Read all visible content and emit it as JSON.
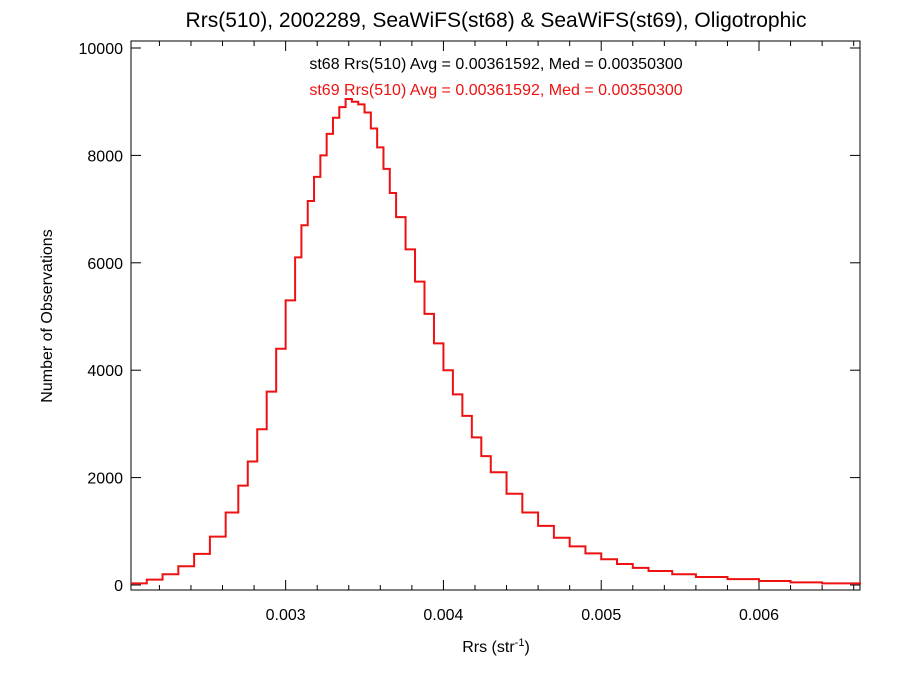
{
  "chart_data": {
    "type": "line",
    "title": "Rrs(510), 2002289, SeaWiFS(st68) & SeaWiFS(st69), Oligotrophic",
    "xlabel": "Rrs (str",
    "xlabel_sup": "-1",
    "xlabel_close": ")",
    "ylabel": "Number of Observations",
    "xlim": [
      0.00202,
      0.00664
    ],
    "ylim": [
      0,
      10000
    ],
    "xticks": [
      {
        "value": 0.003,
        "label": "0.003"
      },
      {
        "value": 0.004,
        "label": "0.004"
      },
      {
        "value": 0.005,
        "label": "0.005"
      },
      {
        "value": 0.006,
        "label": "0.006"
      }
    ],
    "yticks": [
      {
        "value": 0,
        "label": "0"
      },
      {
        "value": 2000,
        "label": "2000"
      },
      {
        "value": 4000,
        "label": "4000"
      },
      {
        "value": 6000,
        "label": "6000"
      },
      {
        "value": 8000,
        "label": "8000"
      },
      {
        "value": 10000,
        "label": "10000"
      }
    ],
    "annotations": [
      {
        "text": "st68 Rrs(510) Avg = 0.00361592, Med = 0.00350300",
        "color": "#000000"
      },
      {
        "text": "st69 Rrs(510) Avg = 0.00361592, Med = 0.00350300",
        "color": "#ee1111"
      }
    ],
    "series": [
      {
        "color": "#ee1111",
        "step": true,
        "x": [
          0.00202,
          0.00212,
          0.00222,
          0.00232,
          0.00242,
          0.00252,
          0.00262,
          0.0027,
          0.00276,
          0.00282,
          0.00288,
          0.00294,
          0.003,
          0.00306,
          0.0031,
          0.00314,
          0.00318,
          0.00322,
          0.00326,
          0.0033,
          0.00334,
          0.00338,
          0.00342,
          0.00346,
          0.0035,
          0.00354,
          0.00358,
          0.00362,
          0.00366,
          0.0037,
          0.00376,
          0.00382,
          0.00388,
          0.00394,
          0.004,
          0.00406,
          0.00412,
          0.00418,
          0.00424,
          0.0043,
          0.0044,
          0.0045,
          0.0046,
          0.0047,
          0.0048,
          0.0049,
          0.005,
          0.0051,
          0.0052,
          0.0053,
          0.00545,
          0.0056,
          0.0058,
          0.006,
          0.0062,
          0.0064,
          0.00664
        ],
        "values": [
          30,
          100,
          200,
          350,
          580,
          900,
          1350,
          1850,
          2300,
          2900,
          3600,
          4400,
          5300,
          6100,
          6700,
          7150,
          7600,
          8000,
          8400,
          8700,
          8900,
          9050,
          9000,
          8950,
          8800,
          8500,
          8150,
          7750,
          7300,
          6850,
          6250,
          5650,
          5050,
          4500,
          4000,
          3550,
          3150,
          2750,
          2400,
          2100,
          1700,
          1350,
          1100,
          880,
          720,
          590,
          480,
          390,
          320,
          260,
          200,
          150,
          110,
          75,
          50,
          30,
          15
        ]
      }
    ]
  }
}
